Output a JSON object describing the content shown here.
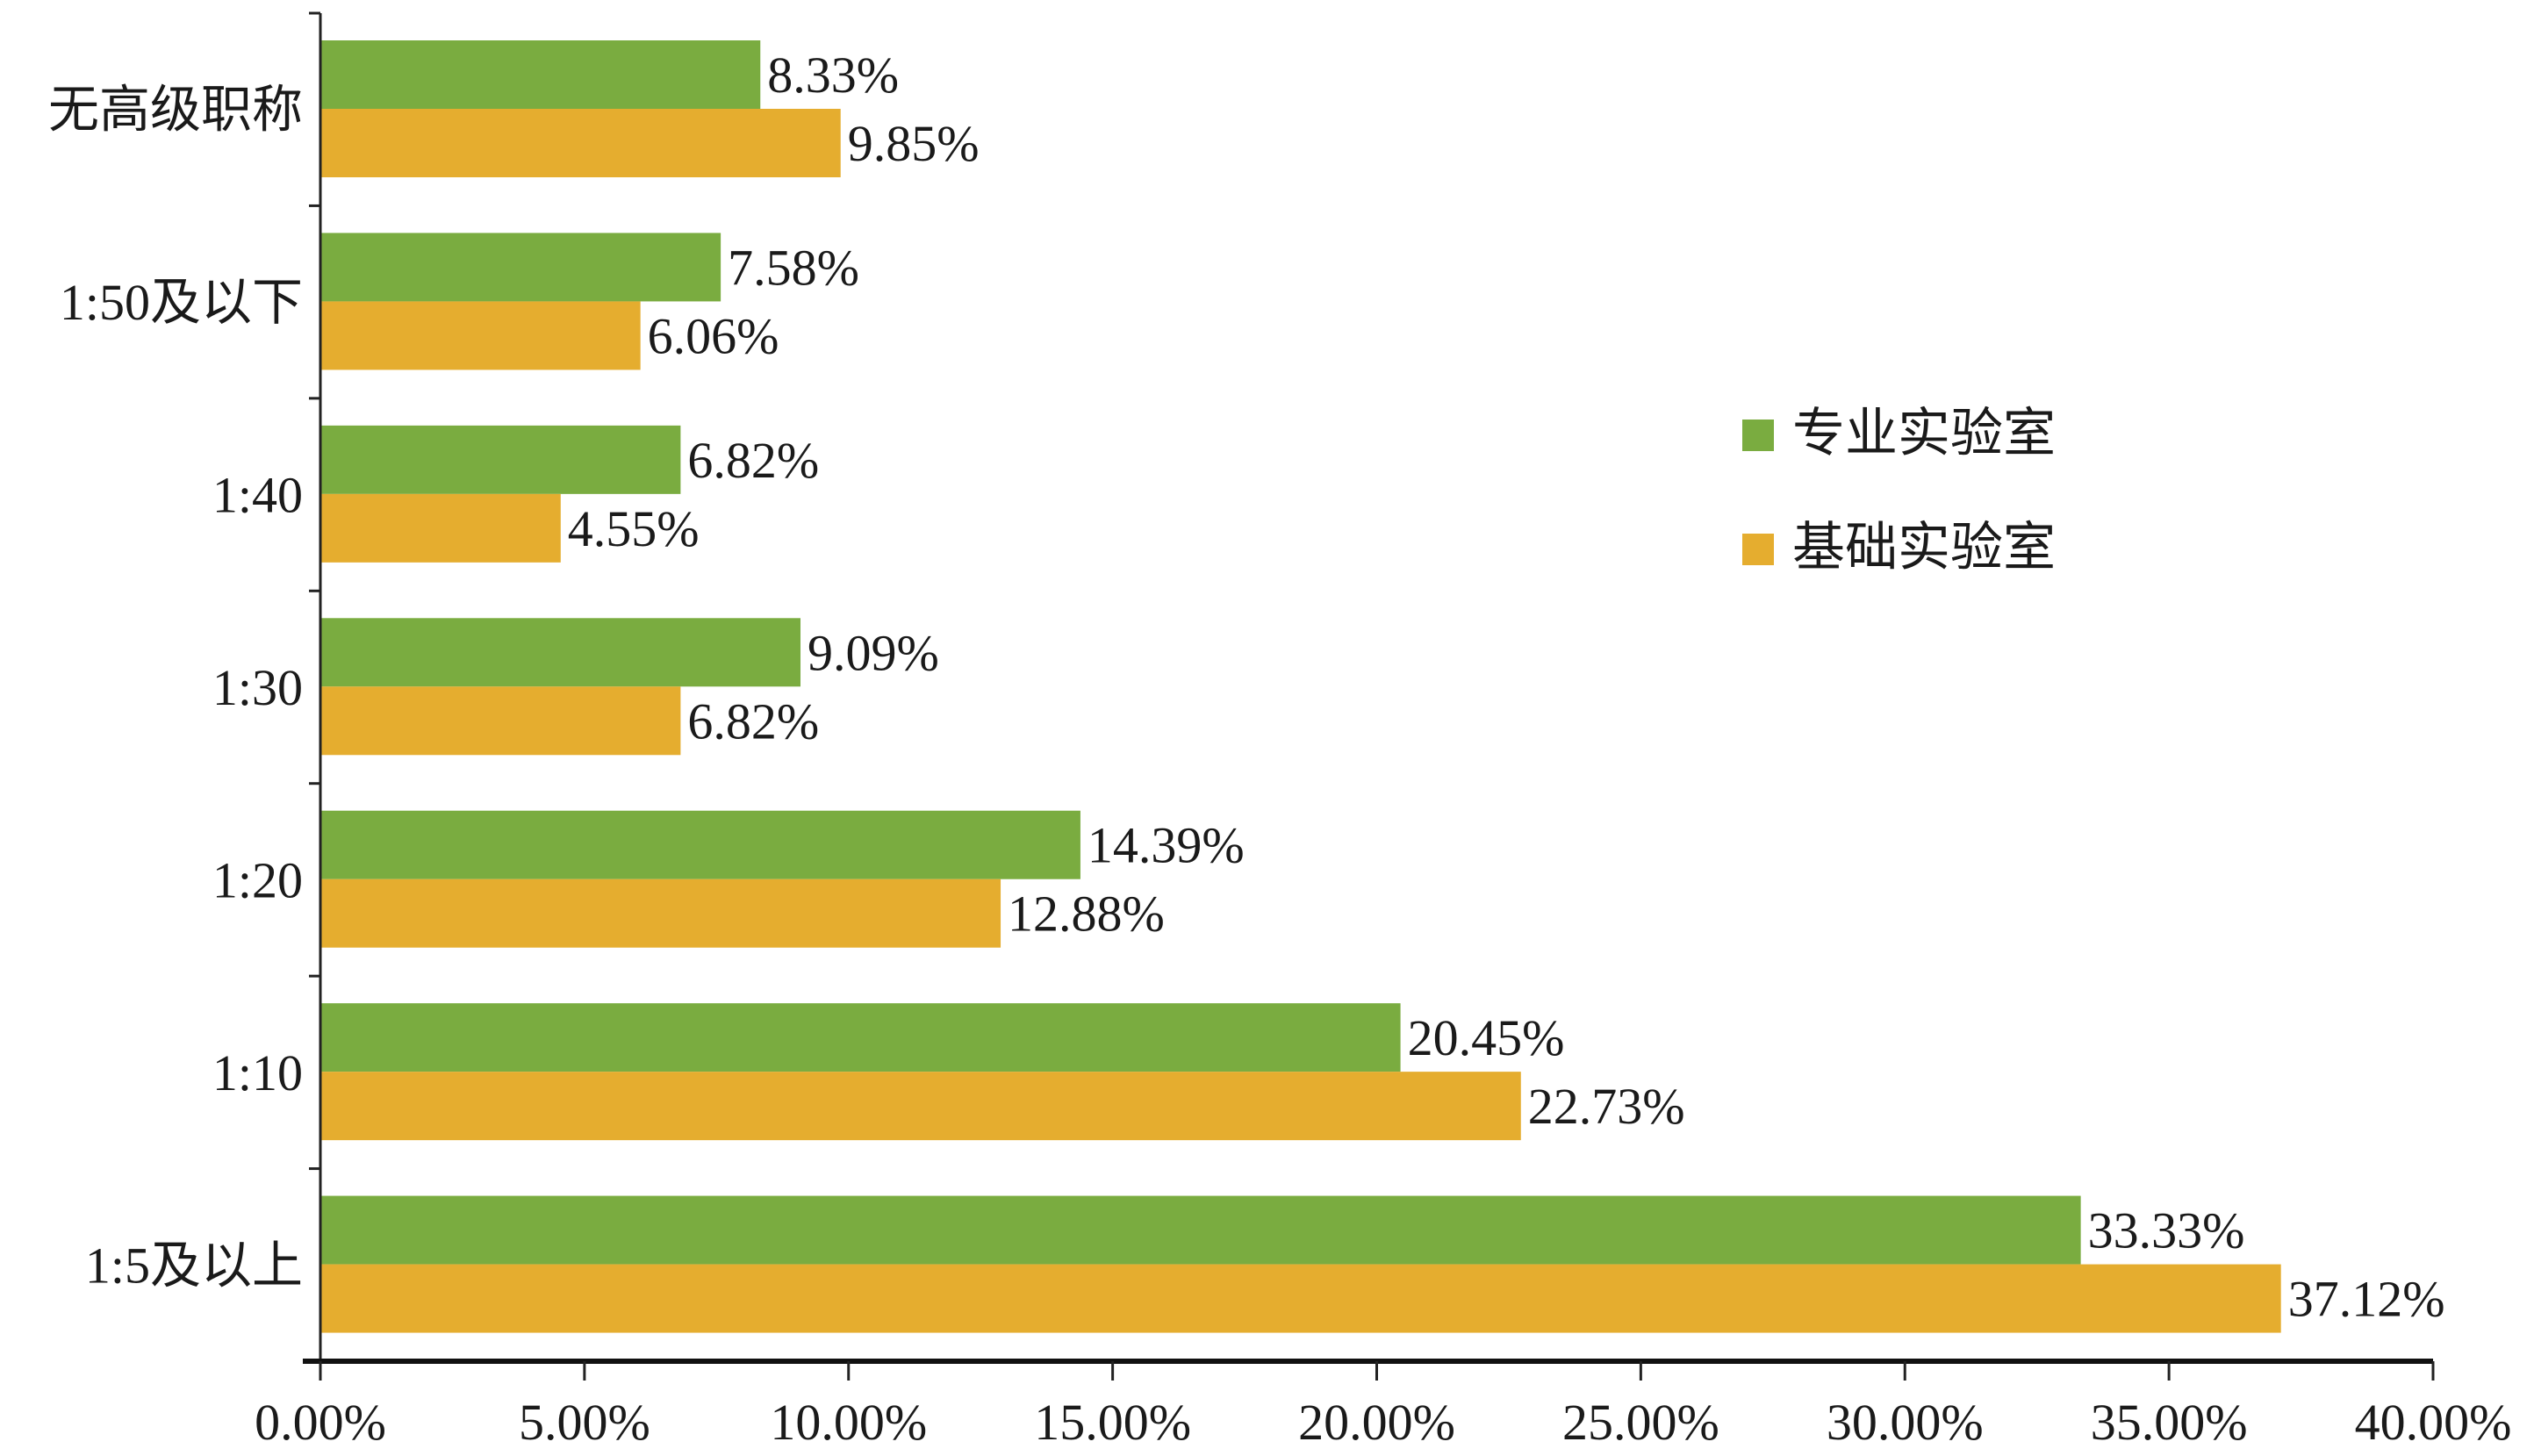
{
  "chart_data": {
    "type": "bar",
    "orientation": "horizontal",
    "categories": [
      "无高级职称",
      "1:50及以下",
      "1:40",
      "1:30",
      "1:20",
      "1:10",
      "1:5及以上"
    ],
    "series": [
      {
        "name": "专业实验室",
        "color": "#7aac40",
        "values": [
          8.33,
          7.58,
          6.82,
          9.09,
          14.39,
          20.45,
          33.33
        ],
        "labels": [
          "8.33%",
          "7.58%",
          "6.82%",
          "9.09%",
          "14.39%",
          "20.45%",
          "33.33%"
        ]
      },
      {
        "name": "基础实验室",
        "color": "#e5ad2f",
        "values": [
          9.85,
          6.06,
          4.55,
          6.82,
          12.88,
          22.73,
          37.12
        ],
        "labels": [
          "9.85%",
          "6.06%",
          "4.55%",
          "6.82%",
          "12.88%",
          "22.73%",
          "37.12%"
        ]
      }
    ],
    "xlim": [
      0,
      40
    ],
    "xticks": [
      0,
      5,
      10,
      15,
      20,
      25,
      30,
      35,
      40
    ],
    "xtick_labels": [
      "0.00%",
      "5.00%",
      "10.00%",
      "15.00%",
      "20.00%",
      "25.00%",
      "30.00%",
      "35.00%",
      "40.00%"
    ],
    "title": "",
    "xlabel": "",
    "ylabel": "",
    "grid": false,
    "legend_position": "right"
  }
}
